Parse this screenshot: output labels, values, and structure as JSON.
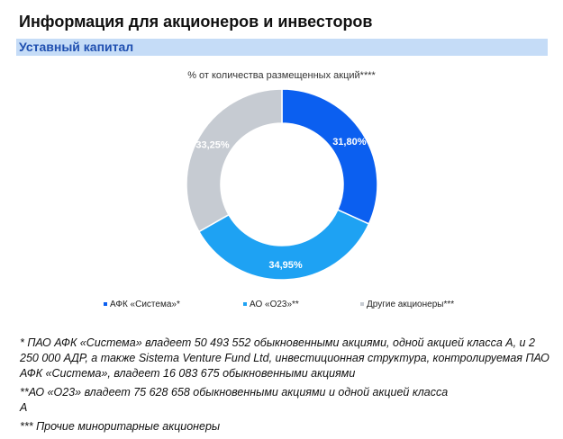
{
  "header": {
    "title": "Информация для акционеров и инвесторов",
    "section": "Уставный капитал"
  },
  "chart_data": {
    "type": "pie",
    "variant": "donut",
    "title": "% от количества размещенных акций****",
    "categories": [
      "АФК «Система»*",
      "АО «О23»**",
      "Другие акционеры***"
    ],
    "values": [
      31.8,
      34.95,
      33.25
    ],
    "labels": [
      "31,80%",
      "34,95%",
      "33,25%"
    ],
    "colors": [
      "#0b5ff0",
      "#1ea2f3",
      "#c6cbd2"
    ],
    "legend": "bottom"
  },
  "notes": [
    "* ПАО АФК «Система» владеет 50 493 552 обыкновенными акциями, одной акцией класса А, и 2 250 000 АДР, а также Sistema Venture Fund Ltd, инвестиционная структура, контролируемая ПАО АФК «Система», владеет 16 083 675 обыкновенными акциями",
    "**АО «О23» владеет 75 628 658 обыкновенными акциями и одной акцией класса А",
    "*** Прочие миноритарные акционеры"
  ]
}
